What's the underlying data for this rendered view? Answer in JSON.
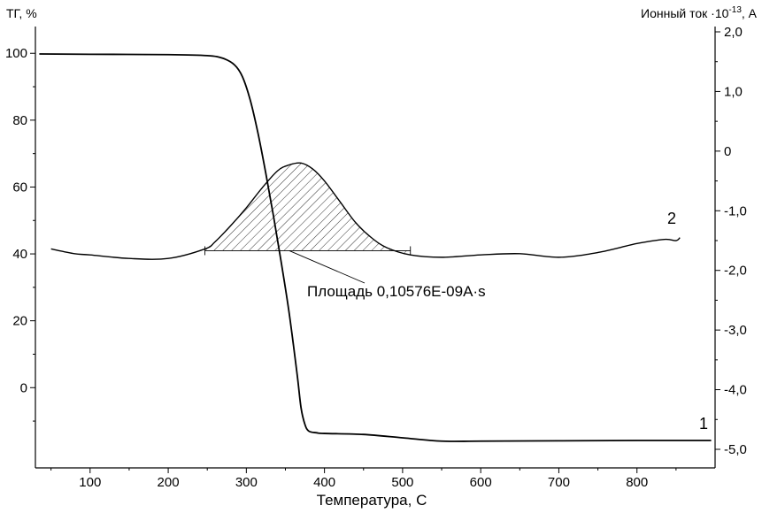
{
  "chart_data": {
    "type": "line",
    "title": "",
    "xlabel": "Температура,  С",
    "ylabel_left": "ТГ, %",
    "ylabel_right_main": "Ионный ток ·10",
    "ylabel_right_exp": "-13",
    "ylabel_right_unit": ", А",
    "xlim": [
      30,
      900
    ],
    "ylim_left": [
      -24,
      108
    ],
    "ylim_right": [
      -5.0,
      2.0
    ],
    "x_ticks": [
      100,
      200,
      300,
      400,
      500,
      600,
      700,
      800
    ],
    "x_tick_labels": [
      "100",
      "200",
      "300",
      "400",
      "500",
      "600",
      "700",
      "800"
    ],
    "y_left_ticks": [
      0,
      20,
      40,
      60,
      80,
      100
    ],
    "y_left_tick_labels": [
      "0",
      "20",
      "40",
      "60",
      "80",
      "100"
    ],
    "y_right_ticks": [
      2.0,
      1.0,
      0.0,
      -1.0,
      -2.0,
      -3.0,
      -4.0,
      -5.0
    ],
    "y_right_tick_labels": [
      "2,0",
      "1,0",
      "0",
      "-1,0",
      "-2,0",
      "-3,0",
      "-4,0",
      "-5,0"
    ],
    "grid": false,
    "series": [
      {
        "name": "1",
        "axis": "left",
        "x": [
          35,
          100,
          200,
          250,
          270,
          285,
          295,
          305,
          315,
          325,
          335,
          345,
          355,
          365,
          370,
          375,
          380,
          390,
          400,
          450,
          500,
          550,
          600,
          700,
          800,
          895
        ],
        "y": [
          99.8,
          99.7,
          99.6,
          99.3,
          98.5,
          96.5,
          93,
          86,
          76,
          64,
          51,
          37,
          22,
          4,
          -6,
          -11,
          -13,
          -13.5,
          -13.7,
          -14,
          -15,
          -16,
          -16,
          -15.9,
          -15.8,
          -15.8
        ]
      },
      {
        "name": "2",
        "axis": "right",
        "x": [
          50,
          80,
          100,
          150,
          200,
          247,
          260,
          280,
          300,
          320,
          340,
          355,
          370,
          385,
          400,
          420,
          440,
          460,
          480,
          510,
          550,
          600,
          650,
          700,
          750,
          800,
          835,
          850,
          855
        ],
        "y": [
          -1.64,
          -1.72,
          -1.74,
          -1.8,
          -1.8,
          -1.64,
          -1.52,
          -1.25,
          -0.95,
          -0.62,
          -0.33,
          -0.23,
          -0.2,
          -0.3,
          -0.5,
          -0.85,
          -1.2,
          -1.45,
          -1.62,
          -1.74,
          -1.78,
          -1.74,
          -1.72,
          -1.78,
          -1.7,
          -1.55,
          -1.48,
          -1.5,
          -1.45
        ]
      }
    ],
    "peak_area": {
      "x_start": 247,
      "x_end": 510,
      "baseline_y": -1.67,
      "label": "Площадь  0,10576E-09A·s"
    }
  }
}
